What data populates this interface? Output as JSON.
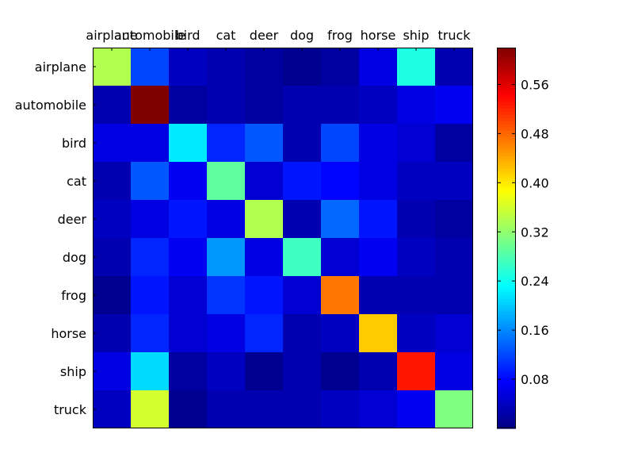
{
  "chart_data": {
    "type": "heatmap",
    "title": "",
    "xlabel": "",
    "ylabel": "",
    "x_categories": [
      "airplane",
      "automobile",
      "bird",
      "cat",
      "deer",
      "dog",
      "frog",
      "horse",
      "ship",
      "truck"
    ],
    "y_categories": [
      "airplane",
      "automobile",
      "bird",
      "cat",
      "deer",
      "dog",
      "frog",
      "horse",
      "ship",
      "truck"
    ],
    "values": [
      [
        0.34,
        0.12,
        0.04,
        0.03,
        0.02,
        0.01,
        0.02,
        0.06,
        0.25,
        0.03
      ],
      [
        0.03,
        0.62,
        0.02,
        0.03,
        0.02,
        0.03,
        0.03,
        0.04,
        0.06,
        0.07
      ],
      [
        0.06,
        0.06,
        0.22,
        0.1,
        0.13,
        0.03,
        0.12,
        0.06,
        0.05,
        0.02
      ],
      [
        0.03,
        0.13,
        0.07,
        0.29,
        0.05,
        0.09,
        0.08,
        0.06,
        0.04,
        0.04
      ],
      [
        0.04,
        0.06,
        0.09,
        0.06,
        0.34,
        0.03,
        0.14,
        0.09,
        0.03,
        0.02
      ],
      [
        0.03,
        0.1,
        0.07,
        0.17,
        0.06,
        0.27,
        0.05,
        0.07,
        0.04,
        0.03
      ],
      [
        0.01,
        0.09,
        0.05,
        0.11,
        0.09,
        0.05,
        0.47,
        0.03,
        0.03,
        0.03
      ],
      [
        0.03,
        0.1,
        0.05,
        0.06,
        0.1,
        0.03,
        0.04,
        0.42,
        0.04,
        0.05
      ],
      [
        0.06,
        0.21,
        0.02,
        0.04,
        0.01,
        0.03,
        0.01,
        0.03,
        0.53,
        0.06
      ],
      [
        0.04,
        0.36,
        0.01,
        0.03,
        0.03,
        0.03,
        0.04,
        0.05,
        0.07,
        0.31
      ]
    ],
    "colormap": "jet",
    "vmin": 0.0,
    "vmax": 0.62,
    "colorbar_ticks": [
      0.08,
      0.16,
      0.24,
      0.32,
      0.4,
      0.48,
      0.56
    ],
    "colorbar_tick_labels": [
      "0.08",
      "0.16",
      "0.24",
      "0.32",
      "0.40",
      "0.48",
      "0.56"
    ],
    "x_tick_position": "top",
    "grid": false
  }
}
